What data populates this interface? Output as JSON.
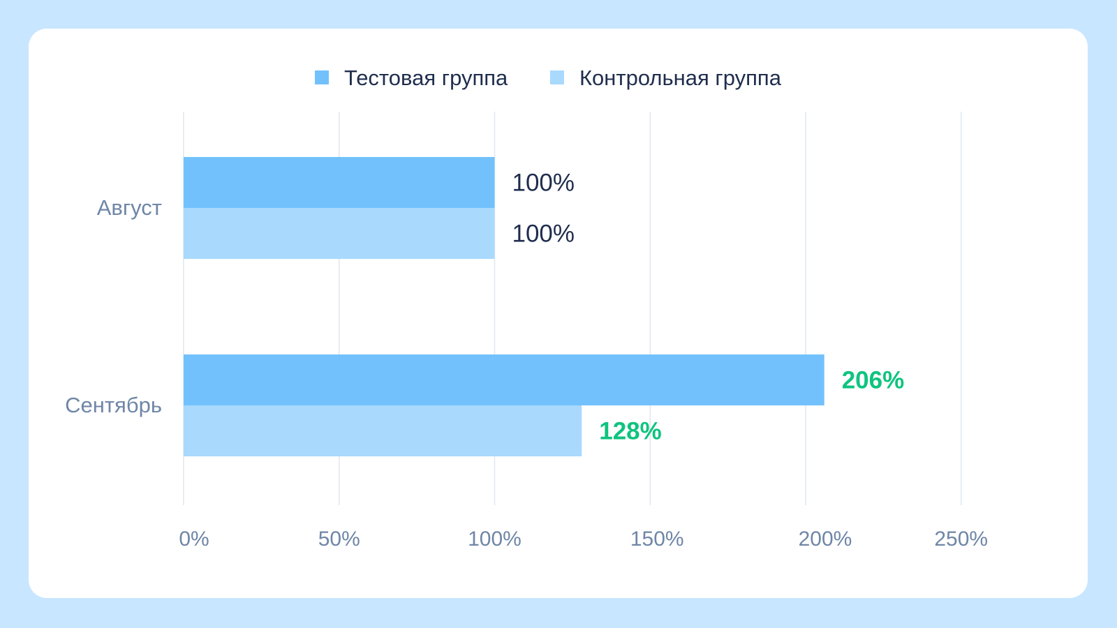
{
  "chart_data": {
    "type": "bar",
    "orientation": "horizontal",
    "categories": [
      "Август",
      "Сентябрь"
    ],
    "series": [
      {
        "name": "Тестовая группа",
        "values": [
          100,
          206
        ],
        "labels": [
          "100%",
          "206%"
        ],
        "color": "#72c1fd"
      },
      {
        "name": "Контрольная группа",
        "values": [
          100,
          128
        ],
        "labels": [
          "100%",
          "128%"
        ],
        "color": "#a9d9fd"
      }
    ],
    "xlim": [
      0,
      250
    ],
    "xticks": [
      0,
      50,
      100,
      150,
      200,
      250
    ],
    "xtick_labels": [
      "0%",
      "50%",
      "100%",
      "150%",
      "200%",
      "250%"
    ],
    "grid": "vertical",
    "legend_position": "top",
    "label_colors": {
      "baseline": "#1f2d4d",
      "growth": "#0fc37f"
    },
    "title": "",
    "xlabel": "",
    "ylabel": ""
  },
  "colors": {
    "page_background": "#c8e6ff",
    "card_background": "#ffffff",
    "grid": "#dfe7ef",
    "axis_text": "#6f86a6",
    "legend_text": "#1f2d4d"
  }
}
